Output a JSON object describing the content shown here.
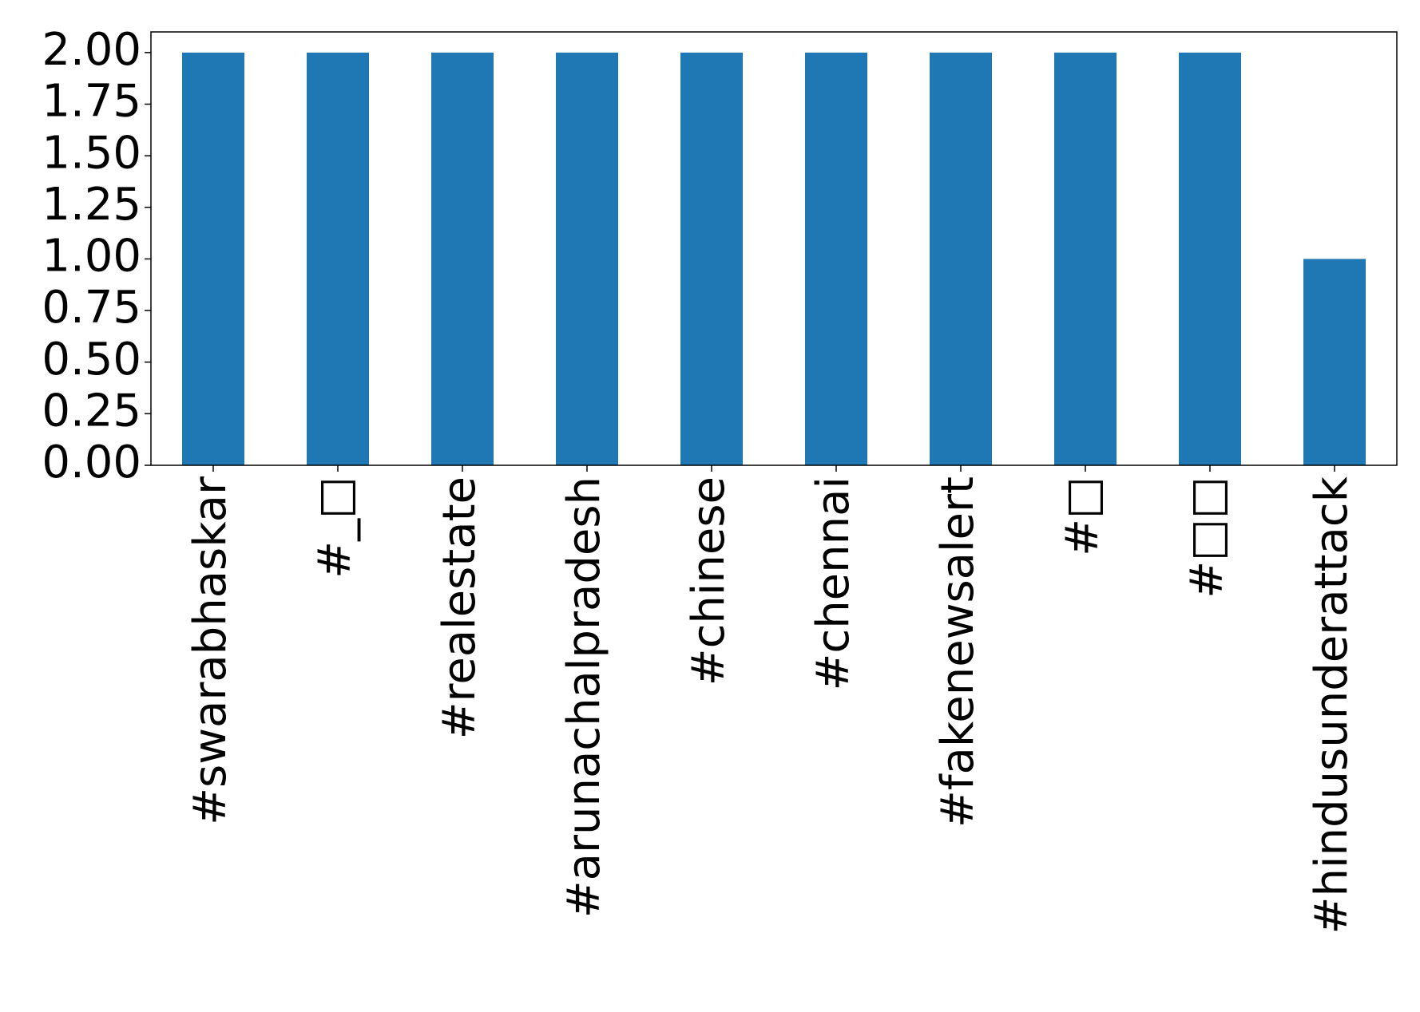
{
  "chart_data": {
    "type": "bar",
    "categories": [
      "#swarabhaskar",
      "#_□",
      "#realestate",
      "#arunachalpradesh",
      "#chinese",
      "#chennai",
      "#fakenewsalert",
      "#□",
      "#□□",
      "#hindusunderattack"
    ],
    "values": [
      2,
      2,
      2,
      2,
      2,
      2,
      2,
      2,
      2,
      1
    ],
    "color": "#1f77b4",
    "ylim": [
      0,
      2.1
    ],
    "yticks": [
      {
        "value": 0,
        "label": "0.00"
      },
      {
        "value": 0.25,
        "label": "0.25"
      },
      {
        "value": 0.5,
        "label": "0.50"
      },
      {
        "value": 0.75,
        "label": "0.75"
      },
      {
        "value": 1,
        "label": "1.00"
      },
      {
        "value": 1.25,
        "label": "1.25"
      },
      {
        "value": 1.5,
        "label": "1.50"
      },
      {
        "value": 1.75,
        "label": "1.75"
      },
      {
        "value": 2,
        "label": "2.00"
      }
    ],
    "grid": false
  }
}
